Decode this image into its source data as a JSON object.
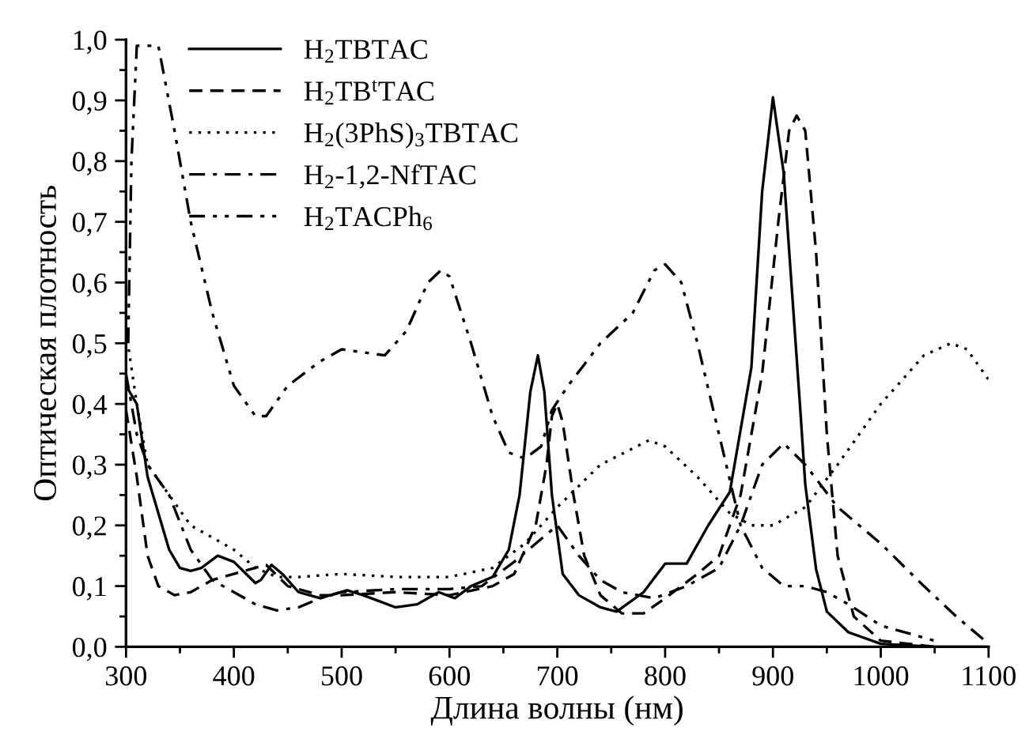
{
  "chart_data": {
    "type": "line",
    "xlabel": "Длина волны (нм)",
    "ylabel": "Оптическая плотность",
    "xlim": [
      300,
      1100
    ],
    "xticks": [
      300,
      400,
      500,
      600,
      700,
      800,
      900,
      1000,
      1100
    ],
    "ylim": [
      0,
      1.0
    ],
    "yticks": [
      {
        "value": 0,
        "label": "0,0"
      },
      {
        "value": 0.1,
        "label": "0,1"
      },
      {
        "value": 0.2,
        "label": "0,2"
      },
      {
        "value": 0.3,
        "label": "0,3"
      },
      {
        "value": 0.4,
        "label": "0,4"
      },
      {
        "value": 0.5,
        "label": "0,5"
      },
      {
        "value": 0.6,
        "label": "0,6"
      },
      {
        "value": 0.7,
        "label": "0,7"
      },
      {
        "value": 0.8,
        "label": "0,8"
      },
      {
        "value": 0.9,
        "label": "0,9"
      },
      {
        "value": 1.0,
        "label": "1,0"
      }
    ],
    "grid": false,
    "legend": "top left",
    "marker": "none",
    "series": [
      {
        "name": "H$_{2}$TBTAC",
        "color": "#000000",
        "line_style": "solid",
        "x": [
          300,
          310,
          320,
          340,
          350,
          360,
          370,
          385,
          400,
          420,
          425,
          435,
          445,
          460,
          480,
          505,
          520,
          550,
          570,
          590,
          605,
          620,
          640,
          655,
          665,
          675,
          682,
          688,
          695,
          705,
          720,
          740,
          755,
          780,
          800,
          820,
          840,
          860,
          880,
          890,
          900,
          910,
          925,
          930,
          940,
          950,
          970,
          1000,
          1050,
          1100
        ],
        "values": [
          0.43,
          0.4,
          0.28,
          0.16,
          0.13,
          0.125,
          0.13,
          0.15,
          0.14,
          0.105,
          0.11,
          0.135,
          0.12,
          0.09,
          0.08,
          0.093,
          0.085,
          0.065,
          0.07,
          0.09,
          0.08,
          0.1,
          0.115,
          0.16,
          0.25,
          0.42,
          0.48,
          0.42,
          0.25,
          0.12,
          0.085,
          0.065,
          0.058,
          0.09,
          0.137,
          0.137,
          0.2,
          0.255,
          0.46,
          0.75,
          0.905,
          0.78,
          0.4,
          0.267,
          0.128,
          0.058,
          0.024,
          0.005,
          0.0,
          0.0
        ]
      },
      {
        "name": "H$_{2}$TB$^{t}$TAC",
        "color": "#000000",
        "line_style": "dashed",
        "x": [
          300,
          310,
          320,
          330,
          345,
          360,
          380,
          400,
          430,
          450,
          480,
          500,
          550,
          600,
          640,
          660,
          680,
          690,
          695,
          700,
          705,
          715,
          725,
          740,
          760,
          780,
          800,
          830,
          850,
          870,
          890,
          905,
          915,
          922,
          930,
          940,
          950,
          960,
          975,
          1000,
          1050
        ],
        "values": [
          0.39,
          0.28,
          0.15,
          0.1,
          0.085,
          0.09,
          0.11,
          0.12,
          0.135,
          0.1,
          0.085,
          0.085,
          0.09,
          0.085,
          0.1,
          0.12,
          0.2,
          0.3,
          0.38,
          0.4,
          0.37,
          0.25,
          0.15,
          0.085,
          0.055,
          0.055,
          0.08,
          0.12,
          0.15,
          0.25,
          0.45,
          0.7,
          0.85,
          0.875,
          0.85,
          0.65,
          0.35,
          0.15,
          0.05,
          0.01,
          0.0
        ]
      },
      {
        "name": "H$_{2}$(3PhS)$_{3}$TBTAC",
        "color": "#000000",
        "line_style": "dotted",
        "x": [
          300,
          310,
          320,
          340,
          360,
          380,
          400,
          420,
          440,
          460,
          500,
          550,
          600,
          640,
          670,
          700,
          740,
          785,
          800,
          830,
          860,
          880,
          900,
          930,
          960,
          1000,
          1040,
          1065,
          1080,
          1100
        ],
        "values": [
          0.52,
          0.4,
          0.3,
          0.25,
          0.2,
          0.18,
          0.16,
          0.13,
          0.115,
          0.115,
          0.12,
          0.115,
          0.115,
          0.13,
          0.17,
          0.23,
          0.3,
          0.34,
          0.33,
          0.28,
          0.22,
          0.2,
          0.2,
          0.23,
          0.3,
          0.4,
          0.48,
          0.5,
          0.49,
          0.44
        ]
      },
      {
        "name": "H$_{2}$-1,2-NfTAC",
        "color": "#000000",
        "line_style": "dashdot",
        "x": [
          300,
          310,
          320,
          340,
          360,
          380,
          400,
          420,
          440,
          460,
          480,
          500,
          550,
          600,
          630,
          660,
          680,
          700,
          720,
          740,
          760,
          790,
          820,
          850,
          870,
          890,
          910,
          930,
          960,
          1000,
          1040,
          1070,
          1100
        ],
        "values": [
          0.45,
          0.35,
          0.3,
          0.25,
          0.16,
          0.11,
          0.09,
          0.07,
          0.06,
          0.065,
          0.08,
          0.09,
          0.095,
          0.095,
          0.1,
          0.14,
          0.17,
          0.2,
          0.15,
          0.11,
          0.09,
          0.08,
          0.1,
          0.13,
          0.2,
          0.3,
          0.335,
          0.3,
          0.23,
          0.17,
          0.1,
          0.05,
          0.005
        ]
      },
      {
        "name": "H$_{2}$TACPh$_{6}$",
        "color": "#000000",
        "line_style": "dashdotdot",
        "x": [
          302,
          305,
          310,
          330,
          345,
          360,
          380,
          400,
          420,
          430,
          450,
          480,
          500,
          540,
          560,
          580,
          592,
          600,
          620,
          640,
          655,
          670,
          685,
          695,
          710,
          740,
          770,
          790,
          800,
          815,
          830,
          850,
          870,
          890,
          910,
          930,
          950,
          970,
          1000,
          1050
        ],
        "values": [
          0.5,
          0.8,
          0.99,
          0.99,
          0.85,
          0.7,
          0.55,
          0.43,
          0.38,
          0.38,
          0.43,
          0.47,
          0.49,
          0.48,
          0.52,
          0.6,
          0.62,
          0.61,
          0.5,
          0.38,
          0.32,
          0.31,
          0.33,
          0.39,
          0.43,
          0.5,
          0.55,
          0.62,
          0.63,
          0.6,
          0.5,
          0.35,
          0.2,
          0.13,
          0.1,
          0.1,
          0.09,
          0.07,
          0.035,
          0.01
        ]
      }
    ]
  }
}
